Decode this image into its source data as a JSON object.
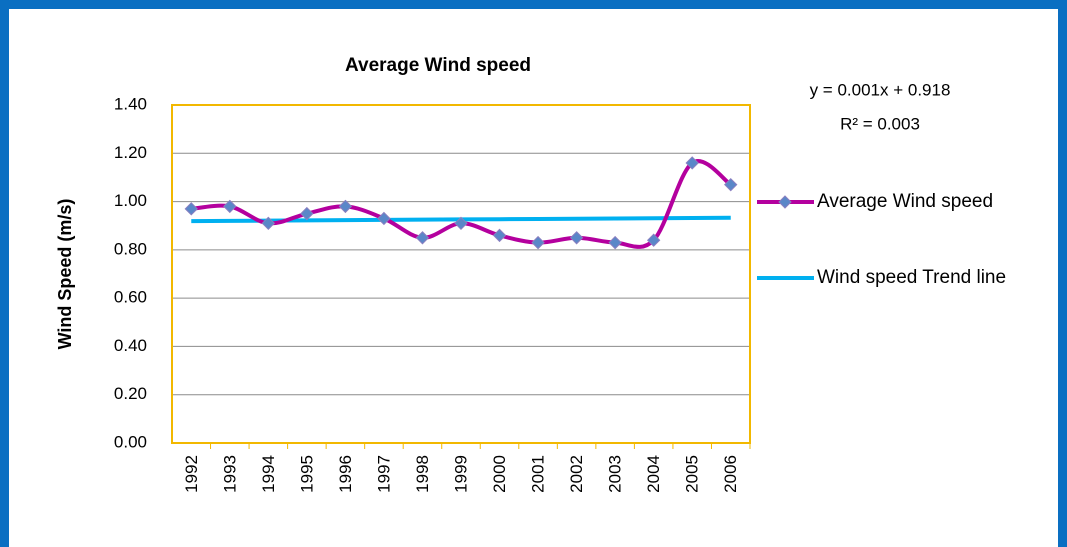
{
  "chart_data": {
    "type": "line",
    "title": "Average Wind speed",
    "y_label": "Wind Speed (m/s)",
    "annotations": [
      "y = 0.001x + 0.918",
      "R² = 0.003"
    ],
    "categories": [
      "1992",
      "1993",
      "1994",
      "1995",
      "1996",
      "1997",
      "1998",
      "1999",
      "2000",
      "2001",
      "2002",
      "2003",
      "2004",
      "2005",
      "2006"
    ],
    "series": [
      {
        "name": "Average Wind speed",
        "color": "#b4009e",
        "marker_color": "#5a87c8",
        "smooth": true,
        "values": [
          0.97,
          0.98,
          0.91,
          0.95,
          0.98,
          0.93,
          0.85,
          0.91,
          0.86,
          0.83,
          0.85,
          0.83,
          0.84,
          1.16,
          1.07
        ]
      },
      {
        "name": "Wind speed Trend line",
        "color": "#00b0f0",
        "values": [
          0.919,
          0.92,
          0.921,
          0.922,
          0.923,
          0.924,
          0.925,
          0.926,
          0.927,
          0.928,
          0.929,
          0.93,
          0.931,
          0.932,
          0.933
        ]
      }
    ],
    "ylim": [
      0,
      1.4
    ],
    "yticks": [
      {
        "value": 0,
        "label": "0.00"
      },
      {
        "value": 0.2,
        "label": "0.20"
      },
      {
        "value": 0.4,
        "label": "0.40"
      },
      {
        "value": 0.6,
        "label": "0.60"
      },
      {
        "value": 0.8,
        "label": "0.80"
      },
      {
        "value": 1.0,
        "label": "1.00"
      },
      {
        "value": 1.2,
        "label": "1.20"
      },
      {
        "value": 1.4,
        "label": "1.40"
      }
    ],
    "grid": true,
    "legend": "right",
    "plot_border_color": "#f2b800",
    "frame_color": "#0a6fc2"
  }
}
